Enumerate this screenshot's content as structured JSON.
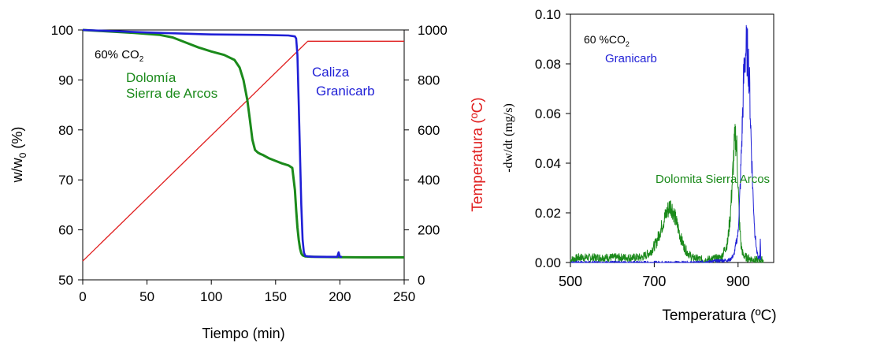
{
  "chart_data": [
    {
      "type": "line",
      "title": "",
      "xlabel": "Tiempo (min)",
      "ylabel_main": "w/w",
      "ylabel_sub": "0",
      "ylabel_tail": " (%)",
      "ylabel_right": "Temperatura (ºC)",
      "xlim": [
        0,
        250
      ],
      "ylim": [
        50,
        100
      ],
      "ylim_right": [
        0,
        1000
      ],
      "xticks": [
        "0",
        "50",
        "100",
        "150",
        "200",
        "250"
      ],
      "yticks": [
        "50",
        "60",
        "70",
        "80",
        "90",
        "100"
      ],
      "yticks_right": [
        "0",
        "200",
        "400",
        "600",
        "800",
        "1000"
      ],
      "grid": false,
      "annotations": {
        "condition_main": "60% CO",
        "condition_sub": "2",
        "dolomia_line1": "Dolomía",
        "dolomia_line2": "Sierra de Arcos",
        "caliza_line1": "Caliza",
        "caliza_line2": "Granicarb"
      },
      "colors": {
        "granicarb": "#1f1fd6",
        "dolomia": "#1b8a1b",
        "temperature": "#e02020"
      },
      "series": [
        {
          "name": "Dolomía Sierra de Arcos",
          "axis": "left",
          "x": [
            0,
            20,
            40,
            60,
            70,
            80,
            90,
            100,
            110,
            118,
            122,
            125,
            128,
            130,
            132,
            134,
            136,
            138,
            140,
            145,
            150,
            155,
            160,
            163,
            165,
            166,
            167,
            168,
            169,
            170,
            171,
            172,
            173,
            175,
            178,
            180,
            200,
            220,
            250
          ],
          "y": [
            100,
            99.7,
            99.4,
            99.0,
            98.5,
            97.5,
            96.5,
            95.7,
            95.0,
            94.0,
            92.5,
            90.0,
            86.0,
            82.0,
            78.0,
            76.0,
            75.5,
            75.2,
            75.0,
            74.3,
            73.8,
            73.3,
            72.9,
            72.4,
            68.0,
            64.0,
            60.5,
            58.0,
            56.3,
            55.3,
            54.9,
            54.8,
            54.7,
            54.65,
            54.6,
            54.6,
            54.55,
            54.5,
            54.5
          ]
        },
        {
          "name": "Caliza Granicarb",
          "axis": "left",
          "x": [
            0,
            50,
            100,
            140,
            160,
            165,
            166,
            167,
            168,
            169,
            170,
            171,
            172,
            173,
            175,
            180,
            190,
            198,
            199,
            200,
            201,
            200
          ],
          "y": [
            100,
            99.5,
            99.1,
            99.0,
            98.9,
            98.7,
            98.3,
            95.0,
            85.0,
            75.0,
            65.0,
            58.0,
            55.5,
            54.8,
            54.7,
            54.6,
            54.6,
            54.6,
            55.5,
            54.6,
            54.6,
            54.6
          ]
        },
        {
          "name": "Temperatura",
          "axis": "right",
          "x": [
            0,
            175,
            250
          ],
          "y": [
            75,
            955,
            955
          ]
        }
      ]
    },
    {
      "type": "line",
      "title": "",
      "xlabel": "Temperatura (ºC)",
      "ylabel": "-dw/dt (mg/s)",
      "xlim": [
        500,
        985
      ],
      "ylim": [
        0,
        0.1
      ],
      "xticks": [
        "500",
        "700",
        "900"
      ],
      "xtick_values": [
        500,
        700,
        900
      ],
      "yticks": [
        "0.00",
        "0.02",
        "0.04",
        "0.06",
        "0.08",
        "0.10"
      ],
      "grid": false,
      "annotations": {
        "condition_main": "60 %CO",
        "condition_sub": "2",
        "granicarb_label": "Granicarb",
        "dolomita_label": "Dolomita Sierra Arcos"
      },
      "colors": {
        "granicarb": "#1f1fd6",
        "dolomia": "#1b8a1b"
      },
      "series": [
        {
          "name": "Dolomita Sierra Arcos",
          "x": [
            500,
            520,
            560,
            600,
            640,
            670,
            690,
            705,
            715,
            725,
            732,
            738,
            742,
            748,
            755,
            765,
            775,
            790,
            820,
            860,
            875,
            882,
            887,
            891,
            894,
            897,
            900,
            903,
            907,
            912,
            920,
            940,
            960
          ],
          "y": [
            0.001,
            0.002,
            0.002,
            0.002,
            0.002,
            0.002,
            0.004,
            0.008,
            0.013,
            0.018,
            0.021,
            0.023,
            0.022,
            0.019,
            0.015,
            0.009,
            0.005,
            0.002,
            0.001,
            0.002,
            0.008,
            0.02,
            0.035,
            0.047,
            0.051,
            0.046,
            0.032,
            0.017,
            0.007,
            0.003,
            0.002,
            0.001,
            0.001
          ]
        },
        {
          "name": "Granicarb",
          "x": [
            500,
            600,
            700,
            800,
            880,
            890,
            900,
            905,
            910,
            913,
            916,
            919,
            922,
            925,
            928,
            931,
            935,
            940,
            945,
            948,
            950,
            952,
            953,
            954
          ],
          "y": [
            0.0,
            0.0,
            0.0,
            0.0,
            0.001,
            0.003,
            0.012,
            0.03,
            0.055,
            0.072,
            0.082,
            0.086,
            0.085,
            0.08,
            0.068,
            0.05,
            0.03,
            0.012,
            0.004,
            0.002,
            0.002,
            0.002,
            0.011,
            0.001
          ]
        }
      ]
    }
  ]
}
